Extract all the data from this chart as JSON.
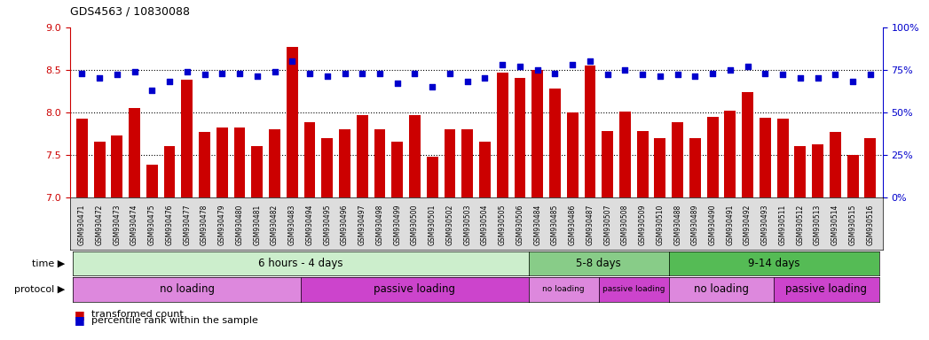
{
  "title": "GDS4563 / 10830088",
  "samples": [
    "GSM930471",
    "GSM930472",
    "GSM930473",
    "GSM930474",
    "GSM930475",
    "GSM930476",
    "GSM930477",
    "GSM930478",
    "GSM930479",
    "GSM930480",
    "GSM930481",
    "GSM930482",
    "GSM930483",
    "GSM930494",
    "GSM930495",
    "GSM930496",
    "GSM930497",
    "GSM930498",
    "GSM930499",
    "GSM930500",
    "GSM930501",
    "GSM930502",
    "GSM930503",
    "GSM930504",
    "GSM930505",
    "GSM930506",
    "GSM930484",
    "GSM930485",
    "GSM930486",
    "GSM930487",
    "GSM930507",
    "GSM930508",
    "GSM930509",
    "GSM930510",
    "GSM930488",
    "GSM930489",
    "GSM930490",
    "GSM930491",
    "GSM930492",
    "GSM930493",
    "GSM930511",
    "GSM930512",
    "GSM930513",
    "GSM930514",
    "GSM930515",
    "GSM930516"
  ],
  "bar_values": [
    7.92,
    7.65,
    7.73,
    8.05,
    7.38,
    7.6,
    8.38,
    7.77,
    7.82,
    7.82,
    7.6,
    7.8,
    8.77,
    7.88,
    7.7,
    7.8,
    7.97,
    7.8,
    7.65,
    7.97,
    7.48,
    7.8,
    7.8,
    7.65,
    8.47,
    8.4,
    8.5,
    8.28,
    8.0,
    8.55,
    7.78,
    8.01,
    7.78,
    7.69,
    7.88,
    7.7,
    7.95,
    8.02,
    8.24,
    7.93,
    7.92,
    7.6,
    7.62,
    7.77,
    7.5,
    7.7
  ],
  "dot_values": [
    73,
    70,
    72,
    74,
    63,
    68,
    74,
    72,
    73,
    73,
    71,
    74,
    80,
    73,
    71,
    73,
    73,
    73,
    67,
    73,
    65,
    73,
    68,
    70,
    78,
    77,
    75,
    73,
    78,
    80,
    72,
    75,
    72,
    71,
    72,
    71,
    73,
    75,
    77,
    73,
    72,
    70,
    70,
    72,
    68,
    72
  ],
  "bar_color": "#cc0000",
  "dot_color": "#0000cc",
  "ylim_left": [
    7.0,
    9.0
  ],
  "ylim_right": [
    0,
    100
  ],
  "yticks_left": [
    7.0,
    7.5,
    8.0,
    8.5,
    9.0
  ],
  "yticks_right": [
    0,
    25,
    50,
    75,
    100
  ],
  "gridlines": [
    7.5,
    8.0,
    8.5
  ],
  "time_groups": [
    {
      "label": "6 hours - 4 days",
      "start": 0,
      "end": 26,
      "color": "#cceecc"
    },
    {
      "label": "5-8 days",
      "start": 26,
      "end": 34,
      "color": "#88cc88"
    },
    {
      "label": "9-14 days",
      "start": 34,
      "end": 46,
      "color": "#55bb55"
    }
  ],
  "protocol_groups": [
    {
      "label": "no loading",
      "start": 0,
      "end": 13,
      "color": "#dd88dd"
    },
    {
      "label": "passive loading",
      "start": 13,
      "end": 26,
      "color": "#cc44cc"
    },
    {
      "label": "no loading",
      "start": 26,
      "end": 30,
      "color": "#dd88dd"
    },
    {
      "label": "passive loading",
      "start": 30,
      "end": 34,
      "color": "#cc44cc"
    },
    {
      "label": "no loading",
      "start": 34,
      "end": 40,
      "color": "#dd88dd"
    },
    {
      "label": "passive loading",
      "start": 40,
      "end": 46,
      "color": "#cc44cc"
    }
  ],
  "time_label": "time",
  "protocol_label": "protocol",
  "legend_bar_label": "transformed count",
  "legend_dot_label": "percentile rank within the sample",
  "bg_color": "#ffffff",
  "xticklabel_bg": "#dddddd"
}
